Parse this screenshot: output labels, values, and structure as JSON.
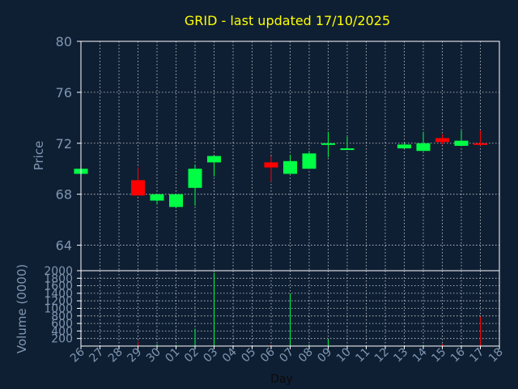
{
  "chart_data": {
    "type": "candlestick",
    "title": "GRID - last updated 17/10/2025",
    "price_axis": {
      "label": "Price",
      "ylim": [
        62,
        80
      ],
      "ticks": [
        64,
        68,
        72,
        76,
        80
      ]
    },
    "volume_axis": {
      "label": "Volume (0000)",
      "ylim": [
        0,
        2000
      ],
      "ticks": [
        200,
        400,
        600,
        800,
        1000,
        1200,
        1400,
        1600,
        1800,
        2000
      ]
    },
    "xlabel": "Day",
    "x_ticks": [
      "26",
      "27",
      "28",
      "29",
      "30",
      "01",
      "02",
      "03",
      "04",
      "05",
      "06",
      "07",
      "08",
      "09",
      "10",
      "11",
      "12",
      "13",
      "14",
      "15",
      "16",
      "17",
      "18"
    ],
    "grid": true,
    "colors": {
      "up": "#00ff44",
      "down": "#ff0000",
      "background": "#0f1f33",
      "grid": "#ffffff",
      "text": "#7f96b2",
      "title": "#ffff00"
    },
    "candles": [
      {
        "day": "26",
        "open": 69.6,
        "close": 70.0,
        "high": 70.0,
        "low": 69.6,
        "volume": 0
      },
      {
        "day": "29",
        "open": 69.1,
        "close": 67.9,
        "high": 70.1,
        "low": 67.9,
        "volume": 120
      },
      {
        "day": "30",
        "open": 67.5,
        "close": 68.0,
        "high": 68.0,
        "low": 67.2,
        "volume": 50
      },
      {
        "day": "01",
        "open": 67.0,
        "close": 68.0,
        "high": 68.0,
        "low": 66.9,
        "volume": 30
      },
      {
        "day": "02",
        "open": 68.5,
        "close": 70.0,
        "high": 70.3,
        "low": 67.1,
        "volume": 460
      },
      {
        "day": "03",
        "open": 70.5,
        "close": 71.0,
        "high": 71.0,
        "low": 69.4,
        "volume": 1940
      },
      {
        "day": "06",
        "open": 70.5,
        "close": 70.1,
        "high": 71.0,
        "low": 69.0,
        "volume": 40
      },
      {
        "day": "07",
        "open": 69.6,
        "close": 70.6,
        "high": 71.1,
        "low": 69.6,
        "volume": 1390
      },
      {
        "day": "08",
        "open": 70.0,
        "close": 71.2,
        "high": 71.4,
        "low": 70.0,
        "volume": 40
      },
      {
        "day": "09",
        "open": 71.9,
        "close": 72.0,
        "high": 72.9,
        "low": 70.9,
        "volume": 180
      },
      {
        "day": "10",
        "open": 71.5,
        "close": 71.6,
        "high": 72.5,
        "low": 71.5,
        "volume": 20
      },
      {
        "day": "13",
        "open": 71.6,
        "close": 71.9,
        "high": 72.0,
        "low": 71.6,
        "volume": 10
      },
      {
        "day": "14",
        "open": 71.4,
        "close": 72.0,
        "high": 72.9,
        "low": 71.4,
        "volume": 30
      },
      {
        "day": "15",
        "open": 72.4,
        "close": 72.1,
        "high": 72.7,
        "low": 71.9,
        "volume": 60
      },
      {
        "day": "16",
        "open": 71.8,
        "close": 72.2,
        "high": 73.0,
        "low": 71.8,
        "volume": 20
      },
      {
        "day": "17",
        "open": 72.0,
        "close": 71.9,
        "high": 73.0,
        "low": 71.8,
        "volume": 780
      }
    ]
  }
}
